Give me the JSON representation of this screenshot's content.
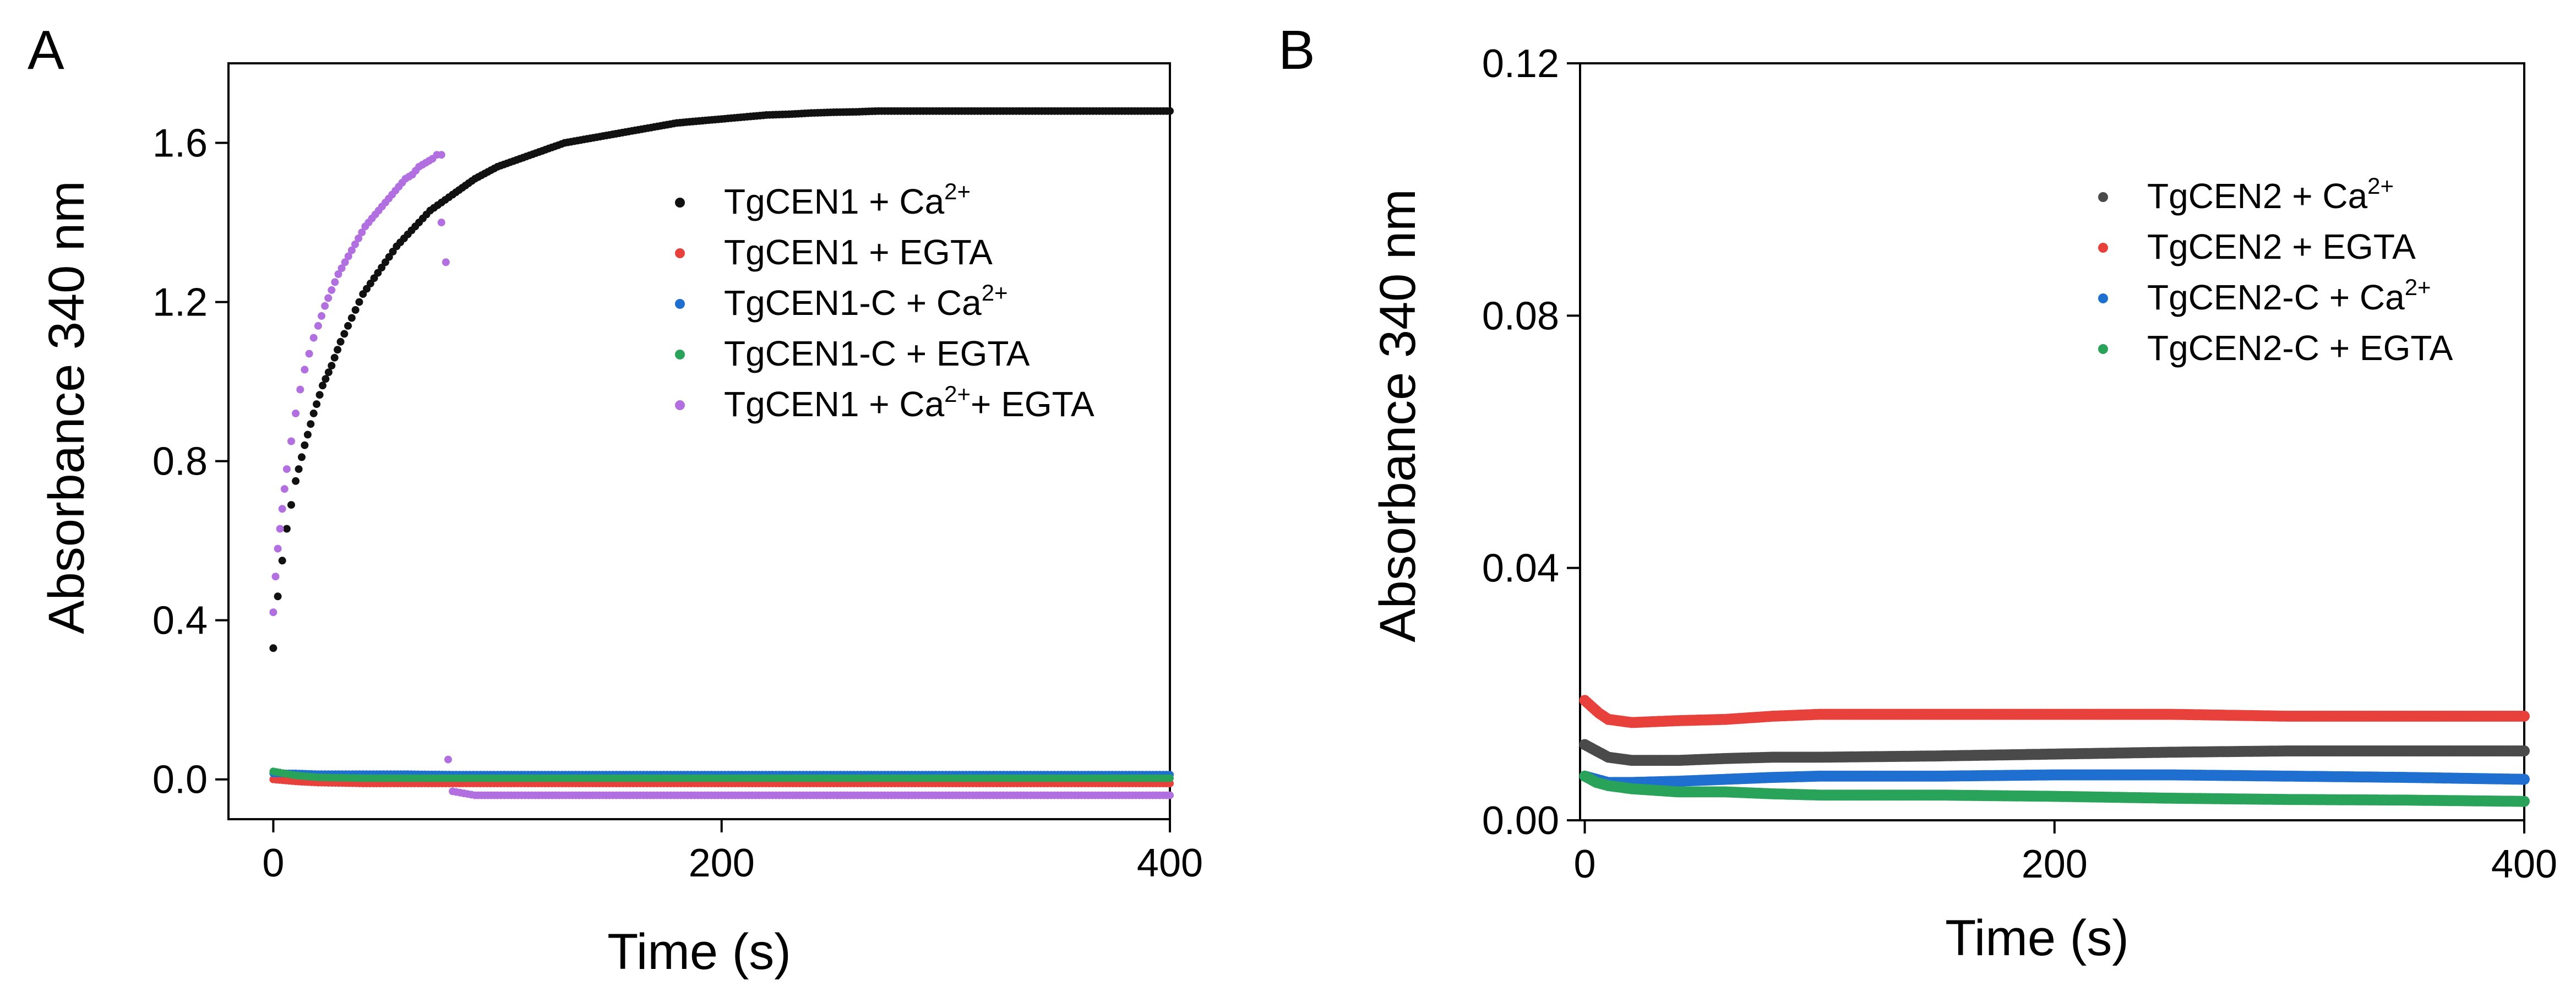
{
  "panels": [
    {
      "letter": "A"
    },
    {
      "letter": "B"
    }
  ],
  "chart_data": [
    {
      "type": "scatter",
      "xlabel": "Time (s)",
      "ylabel": "Absorbance 340 nm",
      "xlim": [
        -20,
        400
      ],
      "ylim": [
        -0.1,
        1.8
      ],
      "xticks": [
        0,
        200,
        400
      ],
      "yticks": [
        0.0,
        0.4,
        0.8,
        1.2,
        1.6
      ],
      "ytick_labels": [
        "0.0",
        "0.4",
        "0.8",
        "1.2",
        "1.6"
      ],
      "legend_position": "upper-right",
      "series": [
        {
          "label_main": "TgCEN1 + Ca",
          "label_sup": "2+",
          "label_tail": "",
          "color": "#111111",
          "x": [
            0,
            2,
            4,
            6,
            8,
            10,
            14,
            18,
            22,
            26,
            30,
            35,
            40,
            45,
            50,
            55,
            60,
            65,
            70,
            75,
            80,
            90,
            100,
            110,
            120,
            130,
            140,
            150,
            160,
            170,
            180,
            190,
            200,
            210,
            220,
            230,
            240,
            250,
            260,
            270,
            280,
            290,
            300,
            310,
            320,
            330,
            340,
            350,
            360,
            370,
            380,
            390,
            400
          ],
          "y": [
            0.33,
            0.46,
            0.55,
            0.63,
            0.69,
            0.75,
            0.84,
            0.92,
            0.99,
            1.04,
            1.1,
            1.16,
            1.22,
            1.26,
            1.3,
            1.34,
            1.37,
            1.4,
            1.43,
            1.45,
            1.47,
            1.51,
            1.54,
            1.56,
            1.58,
            1.6,
            1.61,
            1.62,
            1.63,
            1.64,
            1.65,
            1.655,
            1.66,
            1.665,
            1.67,
            1.672,
            1.675,
            1.677,
            1.678,
            1.68,
            1.68,
            1.68,
            1.68,
            1.68,
            1.68,
            1.68,
            1.68,
            1.68,
            1.68,
            1.68,
            1.68,
            1.68,
            1.68
          ]
        },
        {
          "label_main": "TgCEN1 + EGTA",
          "label_sup": "",
          "label_tail": "",
          "color": "#e8413c",
          "x": [
            0,
            10,
            20,
            40,
            60,
            80,
            100,
            150,
            200,
            250,
            300,
            350,
            400
          ],
          "y": [
            0.0,
            -0.005,
            -0.008,
            -0.01,
            -0.01,
            -0.01,
            -0.01,
            -0.01,
            -0.01,
            -0.01,
            -0.01,
            -0.01,
            -0.01
          ]
        },
        {
          "label_main": "TgCEN1-C + Ca",
          "label_sup": "2+",
          "label_tail": "",
          "color": "#1f6fd1",
          "x": [
            0,
            10,
            20,
            40,
            60,
            80,
            100,
            150,
            200,
            250,
            300,
            350,
            400
          ],
          "y": [
            0.015,
            0.015,
            0.013,
            0.013,
            0.013,
            0.012,
            0.012,
            0.012,
            0.012,
            0.012,
            0.012,
            0.012,
            0.012
          ]
        },
        {
          "label_main": "TgCEN1-C + EGTA",
          "label_sup": "",
          "label_tail": "",
          "color": "#2aa35a",
          "x": [
            0,
            10,
            20,
            40,
            60,
            80,
            100,
            150,
            200,
            250,
            300,
            350,
            400
          ],
          "y": [
            0.02,
            0.01,
            0.005,
            0.003,
            0.003,
            0.003,
            0.003,
            0.003,
            0.003,
            0.003,
            0.003,
            0.003,
            0.003
          ]
        },
        {
          "label_main": "TgCEN1 + Ca",
          "label_sup": "2+",
          "label_tail": "+ EGTA",
          "color": "#b26fe0",
          "x": [
            0,
            1,
            2,
            3,
            4,
            5,
            6,
            8,
            10,
            12,
            14,
            16,
            18,
            20,
            23,
            26,
            29,
            32,
            35,
            38,
            41,
            44,
            47,
            50,
            53,
            56,
            59,
            62,
            65,
            68,
            71,
            73,
            75,
            75,
            77,
            78,
            80,
            85,
            90,
            100,
            120,
            150,
            200,
            250,
            300,
            350,
            400
          ],
          "y": [
            0.42,
            0.51,
            0.58,
            0.63,
            0.68,
            0.73,
            0.78,
            0.85,
            0.92,
            0.98,
            1.03,
            1.07,
            1.11,
            1.14,
            1.19,
            1.23,
            1.27,
            1.3,
            1.33,
            1.36,
            1.39,
            1.41,
            1.43,
            1.45,
            1.47,
            1.49,
            1.51,
            1.52,
            1.54,
            1.55,
            1.56,
            1.57,
            1.57,
            1.4,
            1.3,
            0.05,
            -0.03,
            -0.035,
            -0.04,
            -0.04,
            -0.04,
            -0.04,
            -0.04,
            -0.04,
            -0.04,
            -0.04,
            -0.04
          ]
        }
      ]
    },
    {
      "type": "scatter",
      "xlabel": "Time (s)",
      "ylabel": "Absorbance 340 nm",
      "xlim": [
        -2,
        400
      ],
      "ylim": [
        0.0,
        0.12
      ],
      "xticks": [
        0,
        200,
        400
      ],
      "yticks": [
        0.0,
        0.04,
        0.08,
        0.12
      ],
      "ytick_labels": [
        "0.00",
        "0.04",
        "0.08",
        "0.12"
      ],
      "legend_position": "upper-right",
      "series": [
        {
          "label_main": "TgCEN2 + Ca",
          "label_sup": "2+",
          "label_tail": "",
          "color": "#4a4a4a",
          "x": [
            0,
            5,
            10,
            20,
            40,
            60,
            80,
            100,
            150,
            200,
            250,
            300,
            350,
            400
          ],
          "y": [
            0.012,
            0.011,
            0.01,
            0.0095,
            0.0095,
            0.0098,
            0.01,
            0.01,
            0.0102,
            0.0105,
            0.0108,
            0.011,
            0.011,
            0.011
          ]
        },
        {
          "label_main": "TgCEN2 + EGTA",
          "label_sup": "",
          "label_tail": "",
          "color": "#e8413c",
          "x": [
            0,
            3,
            6,
            10,
            20,
            40,
            60,
            80,
            100,
            150,
            200,
            250,
            300,
            350,
            400
          ],
          "y": [
            0.019,
            0.018,
            0.017,
            0.016,
            0.0155,
            0.0158,
            0.016,
            0.0165,
            0.0168,
            0.0168,
            0.0168,
            0.0168,
            0.0165,
            0.0165,
            0.0165
          ]
        },
        {
          "label_main": "TgCEN2-C + Ca",
          "label_sup": "2+",
          "label_tail": "",
          "color": "#1f6fd1",
          "x": [
            0,
            5,
            10,
            20,
            40,
            60,
            80,
            100,
            150,
            200,
            250,
            300,
            350,
            400
          ],
          "y": [
            0.007,
            0.0065,
            0.006,
            0.006,
            0.0062,
            0.0065,
            0.0068,
            0.007,
            0.007,
            0.0072,
            0.0072,
            0.007,
            0.0068,
            0.0065
          ]
        },
        {
          "label_main": "TgCEN2-C + EGTA",
          "label_sup": "",
          "label_tail": "",
          "color": "#2aa35a",
          "x": [
            0,
            5,
            10,
            20,
            40,
            60,
            80,
            100,
            150,
            200,
            250,
            300,
            350,
            400
          ],
          "y": [
            0.007,
            0.006,
            0.0055,
            0.005,
            0.0045,
            0.0045,
            0.0042,
            0.004,
            0.004,
            0.0038,
            0.0035,
            0.0033,
            0.0032,
            0.003
          ]
        }
      ]
    }
  ]
}
